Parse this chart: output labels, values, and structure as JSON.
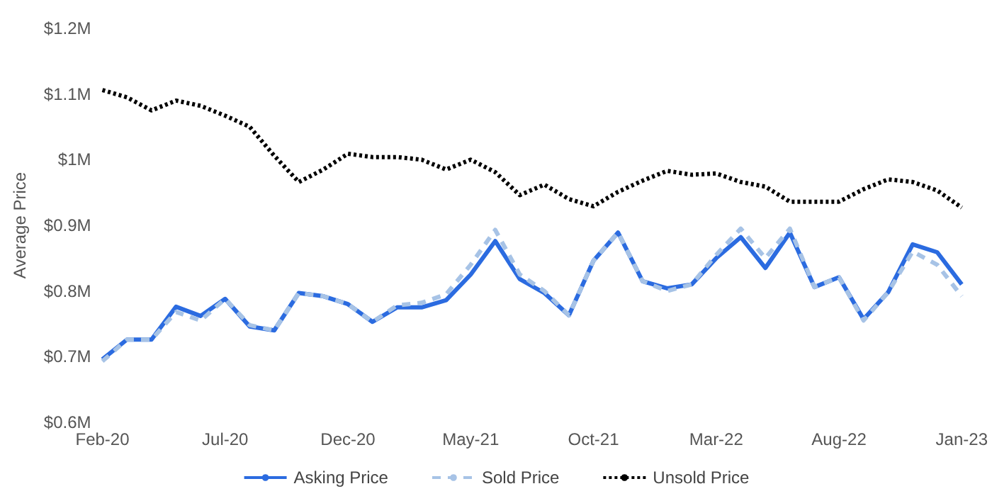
{
  "chart_data": {
    "type": "line",
    "ylabel": "Average Price",
    "categories": [
      "Feb-20",
      null,
      null,
      null,
      null,
      "Jul-20",
      null,
      null,
      null,
      null,
      "Dec-20",
      null,
      null,
      null,
      null,
      "May-21",
      null,
      null,
      null,
      null,
      "Oct-21",
      null,
      null,
      null,
      null,
      "Mar-22",
      null,
      null,
      null,
      null,
      "Aug-22",
      null,
      null,
      null,
      null,
      "Jan-23"
    ],
    "series": [
      {
        "name": "Asking Price",
        "color": "#2b6be0",
        "line_style": "solid",
        "values": [
          0.696,
          0.726,
          0.726,
          0.776,
          0.762,
          0.788,
          0.746,
          0.74,
          0.797,
          0.792,
          0.78,
          0.753,
          0.775,
          0.775,
          0.786,
          0.825,
          0.876,
          0.818,
          0.797,
          0.763,
          0.846,
          0.889,
          0.815,
          0.804,
          0.81,
          0.85,
          0.882,
          0.835,
          0.889,
          0.806,
          0.821,
          0.757,
          0.798,
          0.871,
          0.859,
          0.81
        ]
      },
      {
        "name": "Sold Price",
        "color": "#a7c3e6",
        "line_style": "dashed",
        "values": [
          0.693,
          0.726,
          0.726,
          0.768,
          0.755,
          0.788,
          0.748,
          0.74,
          0.797,
          0.792,
          0.78,
          0.753,
          0.778,
          0.782,
          0.795,
          0.84,
          0.893,
          0.825,
          0.8,
          0.763,
          0.846,
          0.889,
          0.815,
          0.8,
          0.81,
          0.855,
          0.895,
          0.85,
          0.895,
          0.806,
          0.821,
          0.755,
          0.798,
          0.86,
          0.84,
          0.792
        ]
      },
      {
        "name": "Unsold Price",
        "color": "#000000",
        "line_style": "dotted",
        "values": [
          1.106,
          1.095,
          1.075,
          1.09,
          1.082,
          1.067,
          1.05,
          1.006,
          0.966,
          0.985,
          1.009,
          1.004,
          1.004,
          1.0,
          0.985,
          1.0,
          0.981,
          0.946,
          0.962,
          0.94,
          0.929,
          0.951,
          0.968,
          0.983,
          0.977,
          0.979,
          0.966,
          0.959,
          0.936,
          0.936,
          0.936,
          0.955,
          0.97,
          0.966,
          0.953,
          0.927
        ]
      }
    ],
    "ylim": [
      0.6,
      1.2
    ],
    "yticks": [
      {
        "value": 0.6,
        "label": "$0.6M"
      },
      {
        "value": 0.7,
        "label": "$0.7M"
      },
      {
        "value": 0.8,
        "label": "$0.8M"
      },
      {
        "value": 0.9,
        "label": "$0.9M"
      },
      {
        "value": 1.0,
        "label": "$1M"
      },
      {
        "value": 1.1,
        "label": "$1.1M"
      },
      {
        "value": 1.2,
        "label": "$1.2M"
      }
    ],
    "grid": false,
    "legend": "bottom",
    "marker": "none"
  }
}
